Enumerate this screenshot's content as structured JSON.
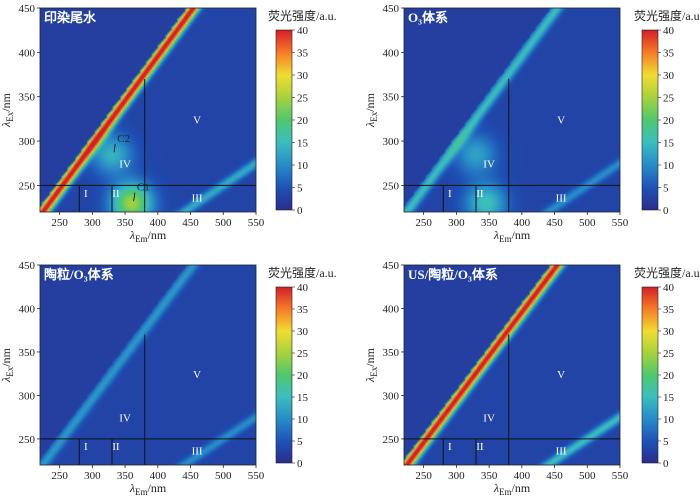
{
  "chart_data": [
    {
      "type": "heatmap",
      "title": "印染尾水",
      "xlabel_var": "λ",
      "xlabel_sub": "Em",
      "xlabel_unit": "/nm",
      "ylabel_var": "λ",
      "ylabel_sub": "Ex",
      "ylabel_unit": "/nm",
      "xlim": [
        220,
        550
      ],
      "ylim": [
        220,
        450
      ],
      "xticks": [
        "250",
        "300",
        "350",
        "400",
        "450",
        "500",
        "550"
      ],
      "yticks": [
        "250",
        "300",
        "350",
        "400",
        "450"
      ],
      "colorbar_label": "荧光强度/a.u.",
      "colorbar_ticks": [
        "0",
        "5",
        "10",
        "15",
        "20",
        "25",
        "30",
        "35",
        "40"
      ],
      "clim": [
        0,
        40
      ],
      "regions": [
        "I",
        "II",
        "III",
        "IV",
        "V"
      ],
      "peaks": [
        {
          "label": "C1",
          "em": 360,
          "ex": 230,
          "intensity": 24
        },
        {
          "label": "C2",
          "em": 330,
          "ex": 285,
          "intensity": 12
        }
      ],
      "scatter_band_intensity": 40,
      "second_order_band_intensity": 10
    },
    {
      "type": "heatmap",
      "title": "O₃体系",
      "xlabel_var": "λ",
      "xlabel_sub": "Em",
      "xlabel_unit": "/nm",
      "ylabel_var": "λ",
      "ylabel_sub": "Ex",
      "ylabel_unit": "/nm",
      "xlim": [
        220,
        550
      ],
      "ylim": [
        220,
        450
      ],
      "xticks": [
        "250",
        "300",
        "350",
        "400",
        "450",
        "500",
        "550"
      ],
      "yticks": [
        "250",
        "300",
        "350",
        "400",
        "450"
      ],
      "colorbar_label": "荧光强度/a.u.",
      "colorbar_ticks": [
        "0",
        "5",
        "10",
        "15",
        "20",
        "25",
        "30",
        "35",
        "40"
      ],
      "clim": [
        0,
        40
      ],
      "regions": [
        "I",
        "II",
        "III",
        "IV",
        "V"
      ],
      "peaks": [
        {
          "label": "",
          "em": 345,
          "ex": 230,
          "intensity": 14
        },
        {
          "label": "",
          "em": 330,
          "ex": 285,
          "intensity": 10
        }
      ],
      "scatter_band_intensity": 12,
      "second_order_band_intensity": 7
    },
    {
      "type": "heatmap",
      "title": "陶粒/O₃体系",
      "xlabel_var": "λ",
      "xlabel_sub": "Em",
      "xlabel_unit": "/nm",
      "ylabel_var": "λ",
      "ylabel_sub": "Ex",
      "ylabel_unit": "/nm",
      "xlim": [
        220,
        550
      ],
      "ylim": [
        220,
        450
      ],
      "xticks": [
        "250",
        "300",
        "350",
        "400",
        "450",
        "500",
        "550"
      ],
      "yticks": [
        "250",
        "300",
        "350",
        "400",
        "450"
      ],
      "colorbar_label": "荧光强度/a.u.",
      "colorbar_ticks": [
        "0",
        "5",
        "10",
        "15",
        "20",
        "25",
        "30",
        "35",
        "40"
      ],
      "clim": [
        0,
        40
      ],
      "regions": [
        "I",
        "II",
        "III",
        "IV",
        "V"
      ],
      "peaks": [],
      "scatter_band_intensity": 8,
      "second_order_band_intensity": 7
    },
    {
      "type": "heatmap",
      "title": "US/陶粒/O₃体系",
      "xlabel_var": "λ",
      "xlabel_sub": "Em",
      "xlabel_unit": "/nm",
      "ylabel_var": "λ",
      "ylabel_sub": "Ex",
      "ylabel_unit": "/nm",
      "xlim": [
        220,
        550
      ],
      "ylim": [
        220,
        450
      ],
      "xticks": [
        "250",
        "300",
        "350",
        "400",
        "450",
        "500",
        "550"
      ],
      "yticks": [
        "250",
        "300",
        "350",
        "400",
        "450"
      ],
      "colorbar_label": "荧光强度/a.u.",
      "colorbar_ticks": [
        "0",
        "5",
        "10",
        "15",
        "20",
        "25",
        "30",
        "35",
        "40"
      ],
      "clim": [
        0,
        40
      ],
      "regions": [
        "I",
        "II",
        "III",
        "IV",
        "V"
      ],
      "peaks": [],
      "scatter_band_intensity": 40,
      "second_order_band_intensity": 12
    }
  ]
}
